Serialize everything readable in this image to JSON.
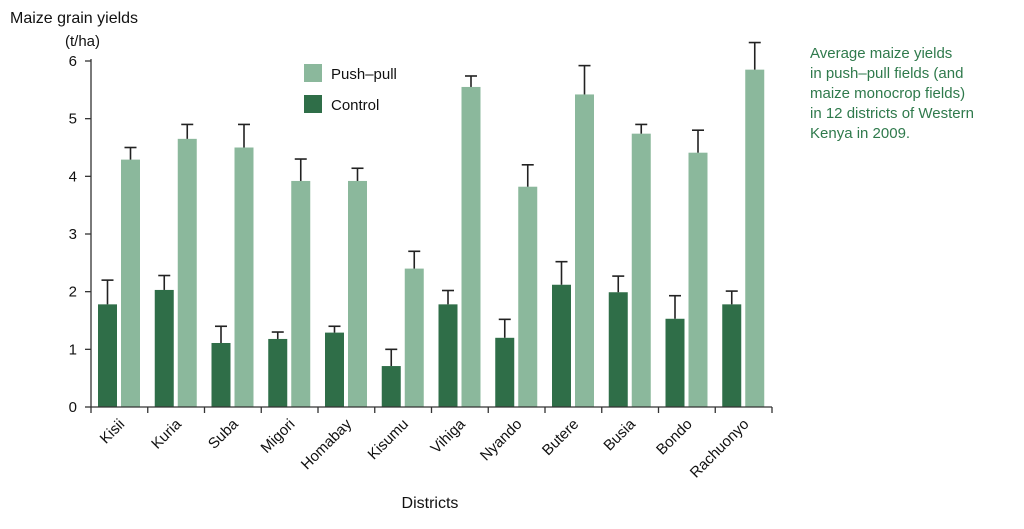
{
  "caption": {
    "lines": [
      "Average maize yields",
      "in push–pull fields (and",
      "maize monocrop fields)",
      "in 12 districts of Western",
      "Kenya in 2009."
    ]
  },
  "colors": {
    "push_pull": "#8bb89c",
    "control": "#2f6e48",
    "axis": "#333333",
    "caption": "#2f7a4c"
  },
  "chart_data": {
    "type": "bar",
    "ylabel_line1": "Maize grain yields",
    "ylabel_line2": "(t/ha)",
    "xlabel": "Districts",
    "ylim": [
      0,
      6
    ],
    "yticks": [
      0,
      1,
      2,
      3,
      4,
      5,
      6
    ],
    "grid": false,
    "legend_position": "top-left",
    "categories": [
      "Kisii",
      "Kuria",
      "Suba",
      "Migori",
      "Homabay",
      "Kisumu",
      "Vihiga",
      "Nyando",
      "Butere",
      "Busia",
      "Bondo",
      "Rachuonyo"
    ],
    "series": [
      {
        "name": "Control",
        "color": "#2f6e48",
        "values": [
          1.78,
          2.03,
          1.11,
          1.18,
          1.29,
          0.71,
          1.78,
          1.2,
          2.12,
          1.99,
          1.53,
          1.78
        ],
        "error_upper": [
          2.2,
          2.28,
          1.4,
          1.3,
          1.4,
          1.0,
          2.02,
          1.52,
          2.52,
          2.27,
          1.93,
          2.01
        ]
      },
      {
        "name": "Push–pull",
        "color": "#8bb89c",
        "values": [
          4.29,
          4.65,
          4.5,
          3.92,
          3.92,
          2.4,
          5.55,
          3.82,
          5.42,
          4.74,
          4.41,
          5.85
        ],
        "error_upper": [
          4.5,
          4.9,
          4.9,
          4.3,
          4.14,
          2.7,
          5.74,
          4.2,
          5.92,
          4.9,
          4.8,
          6.32
        ]
      }
    ]
  }
}
